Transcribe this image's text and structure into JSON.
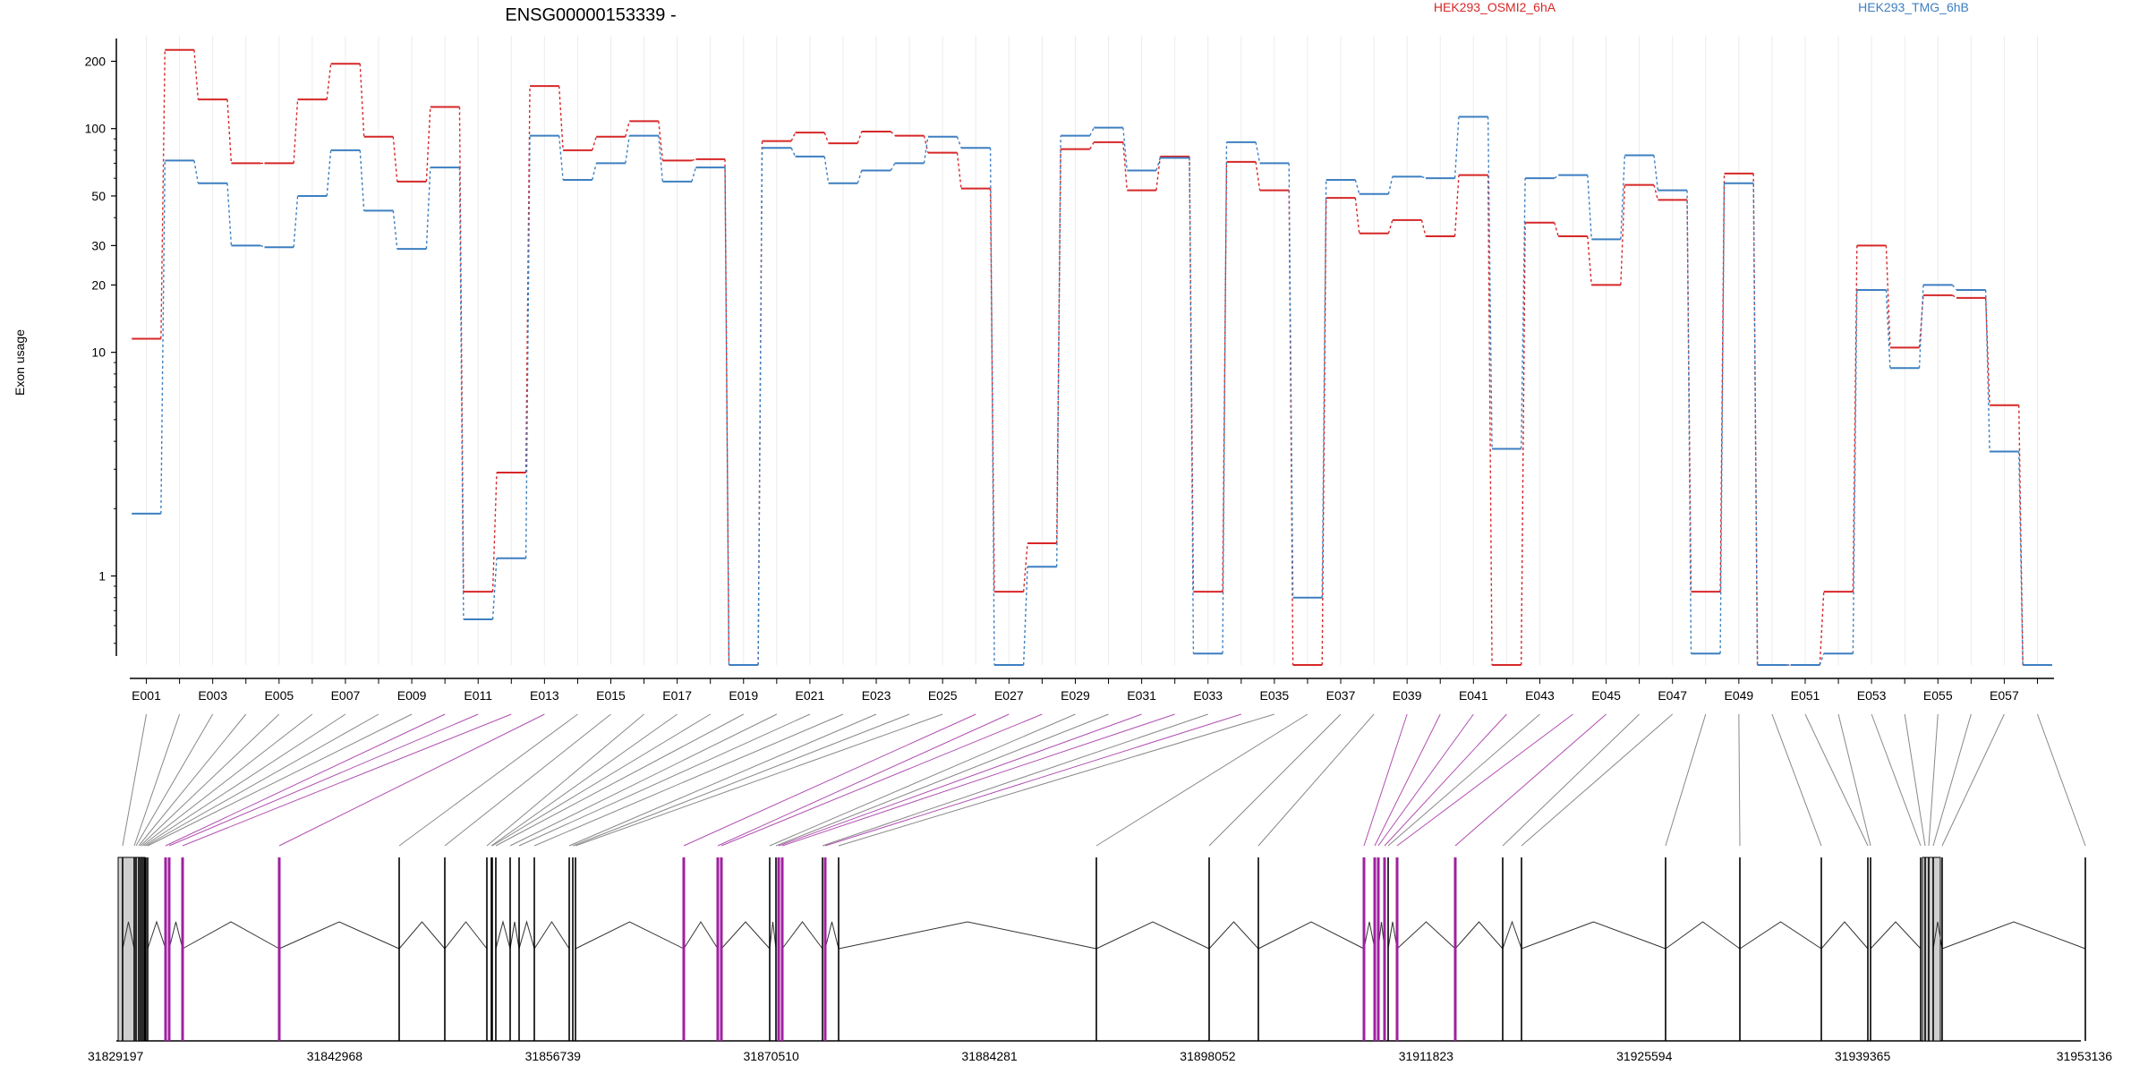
{
  "chart_data": {
    "type": "line",
    "title": "ENSG00000153339 -",
    "ylabel": "Exon usage",
    "y_scale": "log",
    "ylim": [
      0.4,
      260
    ],
    "y_ticks": [
      {
        "value": 200,
        "label": "200"
      },
      {
        "value": 100,
        "label": "100"
      },
      {
        "value": 50,
        "label": "50"
      },
      {
        "value": 30,
        "label": "30"
      },
      {
        "value": 20,
        "label": "20"
      },
      {
        "value": 10,
        "label": "10"
      },
      {
        "value": 1,
        "label": "1"
      }
    ],
    "y_minor_ticks": [
      0.5,
      0.6,
      0.7,
      0.8,
      0.9,
      2,
      3,
      4,
      5,
      6,
      7,
      8,
      9,
      40,
      60,
      70,
      80,
      90
    ],
    "grid": "vertical",
    "legend_position": "top",
    "categories": [
      "E001",
      "E002",
      "E003",
      "E004",
      "E005",
      "E006",
      "E007",
      "E008",
      "E009",
      "E010",
      "E011",
      "E012",
      "E013",
      "E014",
      "E015",
      "E016",
      "E017",
      "E018",
      "E019",
      "E020",
      "E021",
      "E022",
      "E023",
      "E024",
      "E025",
      "E026",
      "E027",
      "E028",
      "E029",
      "E030",
      "E031",
      "E032",
      "E033",
      "E034",
      "E035",
      "E036",
      "E037",
      "E038",
      "E039",
      "E040",
      "E041",
      "E042",
      "E043",
      "E044",
      "E045",
      "E046",
      "E047",
      "E048",
      "E049",
      "E050",
      "E051",
      "E052",
      "E053",
      "E054",
      "E055",
      "E056",
      "E057",
      "E058"
    ],
    "x_tick_labels": [
      "E001",
      "E003",
      "E005",
      "E007",
      "E009",
      "E011",
      "E013",
      "E015",
      "E017",
      "E019",
      "E021",
      "E023",
      "E025",
      "E027",
      "E029",
      "E031",
      "E033",
      "E035",
      "E037",
      "E039",
      "E041",
      "E043",
      "E045",
      "E047",
      "E049",
      "E051",
      "E053",
      "E055",
      "E057"
    ],
    "series": [
      {
        "name": "HEK293_OSMI2_6hA",
        "color": "#d62728",
        "values": [
          11.5,
          225,
          135,
          70,
          70,
          135,
          195,
          92,
          58,
          125,
          0.85,
          2.9,
          155,
          80,
          92,
          108,
          72,
          73,
          0.4,
          88,
          96,
          86,
          97,
          93,
          78,
          54,
          0.85,
          1.4,
          81,
          87,
          53,
          75,
          0.85,
          71,
          53,
          0.4,
          49,
          34,
          39,
          33,
          62,
          0.4,
          38,
          33,
          20,
          56,
          48,
          0.85,
          63,
          0.4,
          0.4,
          0.85,
          30,
          10.5,
          18,
          17.5,
          5.8,
          0.4
        ]
      },
      {
        "name": "HEK293_TMG_6hB",
        "color": "#3d7fc1",
        "values": [
          1.9,
          72,
          57,
          30,
          29.5,
          50,
          80,
          43,
          29,
          67,
          0.64,
          1.2,
          93,
          59,
          70,
          93,
          58,
          67,
          0.4,
          82,
          75,
          57,
          65,
          70,
          92,
          82,
          0.4,
          1.1,
          93,
          101,
          65,
          74,
          0.45,
          87,
          70,
          0.8,
          59,
          51,
          61,
          60,
          113,
          3.7,
          60,
          62,
          32,
          76,
          53,
          0.45,
          57,
          0.4,
          0.4,
          0.45,
          19,
          8.5,
          20,
          19,
          3.6,
          0.4
        ]
      }
    ],
    "genomic_axis": {
      "start": 31829197,
      "end": 31953136,
      "tick_labels": [
        "31829197",
        "31842968",
        "31856739",
        "31870510",
        "31884281",
        "31898052",
        "31911823",
        "31925594",
        "31939365",
        "31953136"
      ]
    }
  }
}
